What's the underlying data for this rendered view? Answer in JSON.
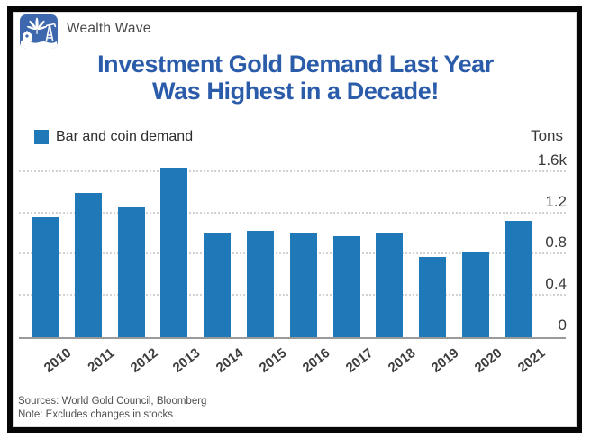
{
  "header": {
    "brand": "Wealth Wave"
  },
  "title": {
    "line1": "Investment Gold Demand Last Year",
    "line2": "Was Highest in a Decade!"
  },
  "chart_data": {
    "type": "bar",
    "title": "Investment Gold Demand Last Year Was Highest in a Decade!",
    "legend": "Bar and coin demand",
    "legend_position": "top-left",
    "categories": [
      "2010",
      "2011",
      "2012",
      "2013",
      "2014",
      "2015",
      "2016",
      "2017",
      "2018",
      "2019",
      "2020",
      "2021"
    ],
    "values": [
      1165,
      1400,
      1255,
      1645,
      1015,
      1035,
      1010,
      975,
      1010,
      775,
      825,
      1130
    ],
    "unit": "Tons",
    "ylabel": "Tons",
    "ylim": [
      0,
      1820
    ],
    "yticks": [
      {
        "label": "1.6k",
        "value": 1600
      },
      {
        "label": "1.2",
        "value": 1200
      },
      {
        "label": "0.8",
        "value": 800
      },
      {
        "label": "0.4",
        "value": 400
      },
      {
        "label": "0",
        "value": 0
      }
    ],
    "grid": "horizontal-dotted",
    "bar_color": "#1F78B8"
  },
  "footer": {
    "sources": "Sources: World Gold Council, Bloomberg",
    "note": "Note: Excludes changes in stocks"
  },
  "colors": {
    "bar": "#1F78B8",
    "title": "#2B5CA9",
    "logo_background": "#3D68AE",
    "grid": "#d2d2d2",
    "axis_line": "#9a9a9a",
    "text": "#3d3d3d"
  }
}
